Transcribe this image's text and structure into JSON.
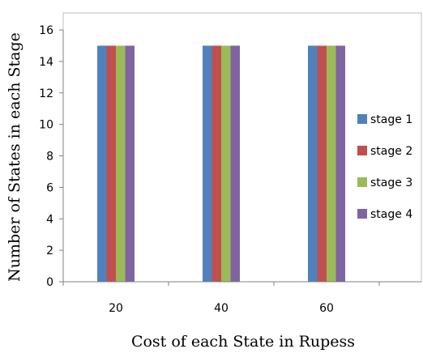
{
  "chart_data": {
    "type": "bar",
    "categories": [
      "20",
      "40",
      "60"
    ],
    "series": [
      {
        "name": "stage 1",
        "values": [
          15,
          15,
          15
        ],
        "color": "#4F81BD"
      },
      {
        "name": "stage 2",
        "values": [
          15,
          15,
          15
        ],
        "color": "#C0504D"
      },
      {
        "name": "stage 3",
        "values": [
          15,
          15,
          15
        ],
        "color": "#9BBB59"
      },
      {
        "name": "stage 4",
        "values": [
          15,
          15,
          15
        ],
        "color": "#8064A2"
      }
    ],
    "xlabel": "Cost of each State in Rupess",
    "ylabel": "Number of States in each Stage",
    "ylim": [
      0,
      16
    ],
    "yticks": [
      "0",
      "2",
      "4",
      "6",
      "8",
      "10",
      "12",
      "14",
      "16"
    ],
    "grid": false,
    "legend_position": "right"
  }
}
